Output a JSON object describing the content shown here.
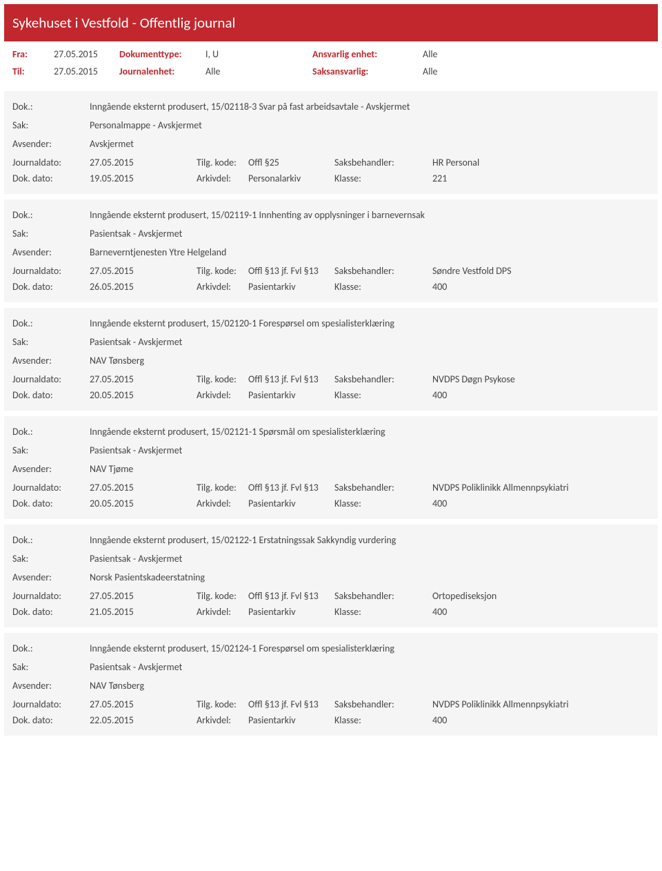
{
  "header": {
    "title": "Sykehuset i Vestfold - Offentlig journal"
  },
  "filter": {
    "fra_label": "Fra:",
    "fra_val": "27.05.2015",
    "til_label": "Til:",
    "til_val": "27.05.2015",
    "doktype_label": "Dokumenttype:",
    "doktype_val": "I, U",
    "journalenhet_label": "Journalenhet:",
    "journalenhet_val": "Alle",
    "ansvarlig_label": "Ansvarlig enhet:",
    "ansvarlig_val": "Alle",
    "saksansvarlig_label": "Saksansvarlig:",
    "saksansvarlig_val": "Alle"
  },
  "labels": {
    "dok": "Dok.:",
    "sak": "Sak:",
    "avsender": "Avsender:",
    "journaldato": "Journaldato:",
    "dokdato": "Dok. dato:",
    "tilgkode": "Tilg. kode:",
    "arkivdel": "Arkivdel:",
    "saksbehandler": "Saksbehandler:",
    "klasse": "Klasse:"
  },
  "entries": [
    {
      "dok": "Inngående eksternt produsert, 15/02118-3 Svar på fast arbeidsavtale - Avskjermet",
      "sak": "Personalmappe - Avskjermet",
      "avsender": "Avskjermet",
      "journaldato": "27.05.2015",
      "tilg": "Offl §25",
      "saksb": "HR Personal",
      "dokdato": "19.05.2015",
      "arkivdel": "Personalarkiv",
      "klasse": "221"
    },
    {
      "dok": "Inngående eksternt produsert, 15/02119-1 Innhenting av opplysninger i barnevernsak",
      "sak": "Pasientsak - Avskjermet",
      "avsender": "Barneverntjenesten Ytre Helgeland",
      "journaldato": "27.05.2015",
      "tilg": "Offl §13 jf. Fvl §13",
      "saksb": "Søndre Vestfold DPS",
      "dokdato": "26.05.2015",
      "arkivdel": "Pasientarkiv",
      "klasse": "400"
    },
    {
      "dok": "Inngående eksternt produsert, 15/02120-1 Forespørsel om spesialisterklæring",
      "sak": "Pasientsak - Avskjermet",
      "avsender": "NAV Tønsberg",
      "journaldato": "27.05.2015",
      "tilg": "Offl §13 jf. Fvl §13",
      "saksb": "NVDPS Døgn Psykose",
      "dokdato": "20.05.2015",
      "arkivdel": "Pasientarkiv",
      "klasse": "400"
    },
    {
      "dok": "Inngående eksternt produsert, 15/02121-1 Spørsmål om spesialisterklæring",
      "sak": "Pasientsak - Avskjermet",
      "avsender": "NAV Tjøme",
      "journaldato": "27.05.2015",
      "tilg": "Offl §13 jf. Fvl §13",
      "saksb": "NVDPS Poliklinikk Allmennpsykiatri",
      "dokdato": "20.05.2015",
      "arkivdel": "Pasientarkiv",
      "klasse": "400"
    },
    {
      "dok": "Inngående eksternt produsert, 15/02122-1 Erstatningssak Sakkyndig vurdering",
      "sak": "Pasientsak - Avskjermet",
      "avsender": "Norsk Pasientskadeerstatning",
      "journaldato": "27.05.2015",
      "tilg": "Offl §13 jf. Fvl §13",
      "saksb": "Ortopediseksjon",
      "dokdato": "21.05.2015",
      "arkivdel": "Pasientarkiv",
      "klasse": "400"
    },
    {
      "dok": "Inngående eksternt produsert, 15/02124-1 Forespørsel om spesialisterklæring",
      "sak": "Pasientsak - Avskjermet",
      "avsender": "NAV Tønsberg",
      "journaldato": "27.05.2015",
      "tilg": "Offl §13 jf. Fvl §13",
      "saksb": "NVDPS Poliklinikk Allmennpsykiatri",
      "dokdato": "22.05.2015",
      "arkivdel": "Pasientarkiv",
      "klasse": "400"
    }
  ]
}
